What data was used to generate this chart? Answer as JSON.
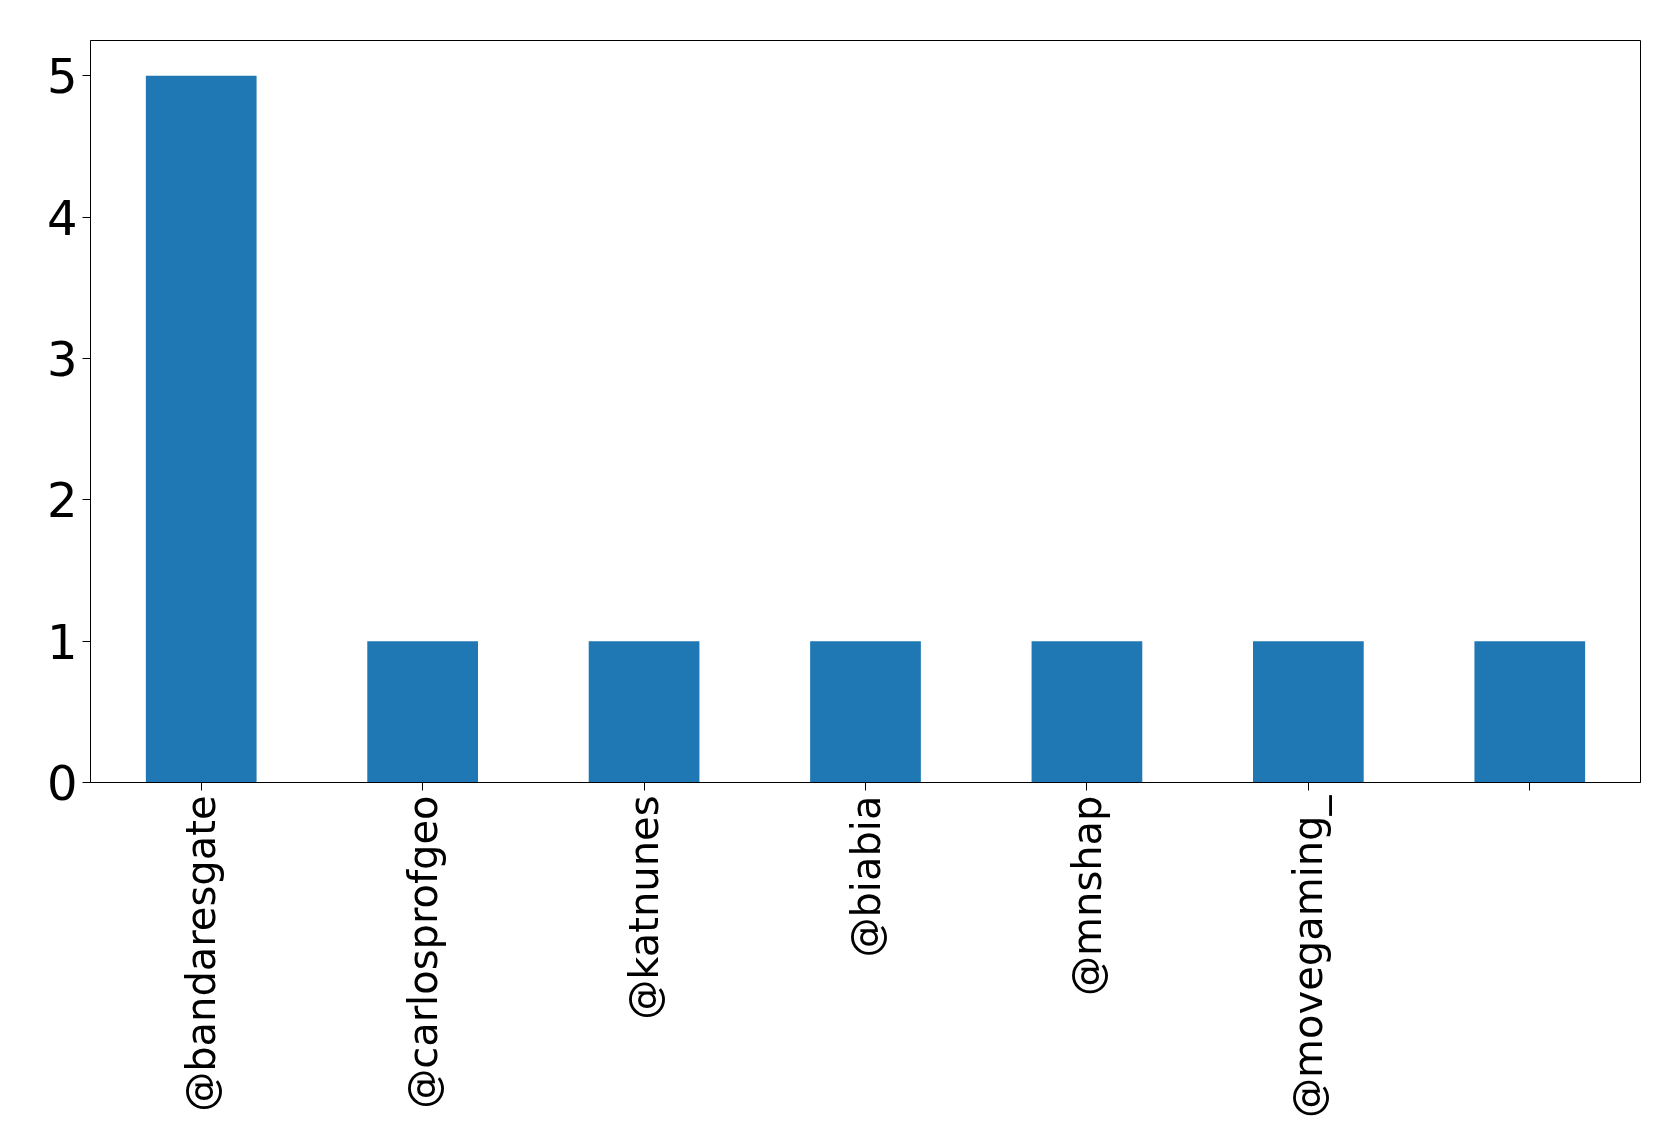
{
  "chart_data": {
    "type": "bar",
    "categories": [
      "@bandaresgate",
      "@carlosprofgeo",
      "@katnunes",
      "@biabia",
      "@mnshap",
      "@movegaming_",
      null
    ],
    "values": [
      5,
      1,
      1,
      1,
      1,
      1,
      1
    ],
    "color": "#1f77b4",
    "ylim": [
      0,
      5.25
    ],
    "yticks": [
      0,
      1,
      2,
      3,
      4,
      5
    ],
    "grid": false
  }
}
